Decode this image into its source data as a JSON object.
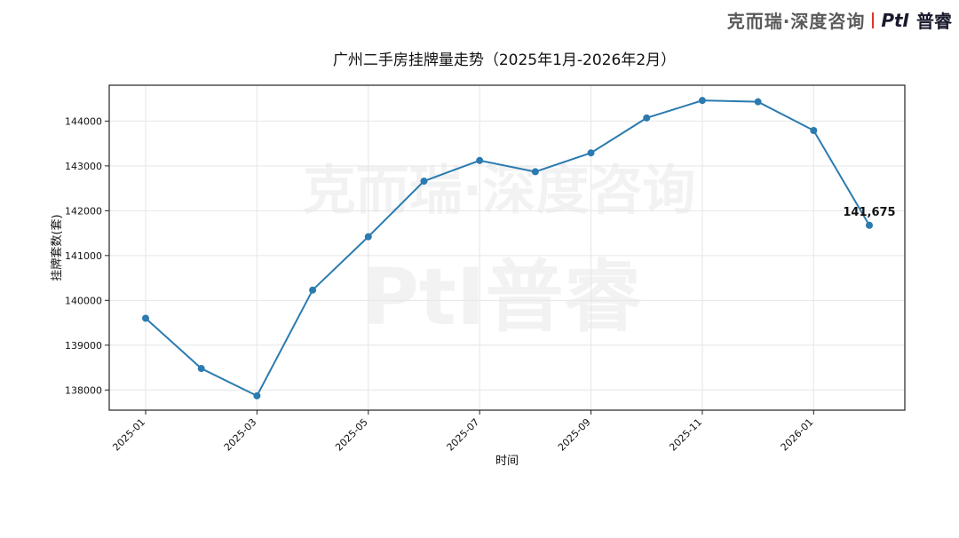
{
  "brand": {
    "company": "克而瑞·深度咨询",
    "logo_latin": "PtI",
    "logo_cn": "普睿"
  },
  "watermark": {
    "line1": "克而瑞·深度咨询",
    "line2": "PtI普睿"
  },
  "colors": {
    "series": "#2b7bb0",
    "brand_red": "#e0342c",
    "grid": "#e6e6e6"
  },
  "chart_data": {
    "type": "line",
    "title": "广州二手房挂牌量走势（2025年1月-2026年2月）",
    "xlabel": "时间",
    "ylabel": "挂牌套数(套)",
    "x": [
      "2025-01",
      "2025-02",
      "2025-03",
      "2025-04",
      "2025-05",
      "2025-06",
      "2025-07",
      "2025-08",
      "2025-09",
      "2025-10",
      "2025-11",
      "2025-12",
      "2026-01",
      "2026-02"
    ],
    "series": [
      {
        "values": [
          139600,
          138480,
          137870,
          140230,
          141420,
          142660,
          143120,
          142870,
          143290,
          144070,
          144460,
          144430,
          143790,
          141675
        ]
      }
    ],
    "x_tick_labels": [
      "2025-01",
      "2025-03",
      "2025-05",
      "2025-07",
      "2025-09",
      "2025-11",
      "2026-01"
    ],
    "y_ticks": [
      138000,
      139000,
      140000,
      141000,
      142000,
      143000,
      144000
    ],
    "ylim": [
      137550,
      144800
    ],
    "grid": true,
    "annotation": {
      "x": "2026-02",
      "text": "141,675"
    }
  }
}
